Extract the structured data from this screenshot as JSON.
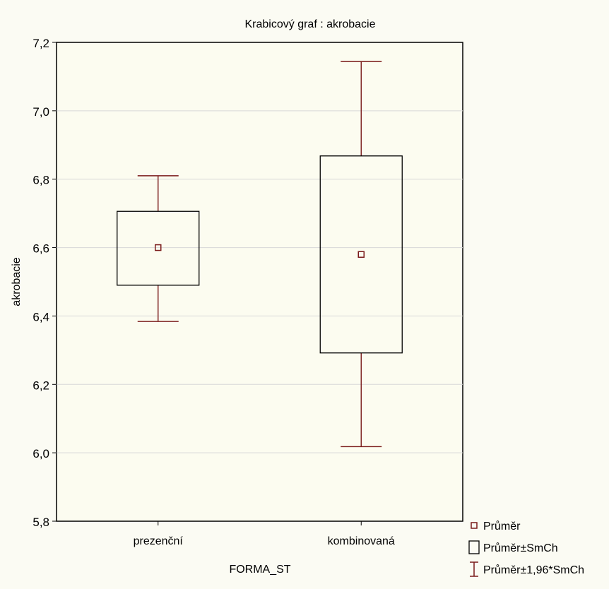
{
  "chart_data": {
    "type": "box",
    "title": "Krabicový  graf :   akrobacie",
    "xlabel": "FORMA_ST",
    "ylabel": "akrobacie",
    "ylim": [
      5.8,
      7.2
    ],
    "yticks": [
      "5,8",
      "6,0",
      "6,2",
      "6,4",
      "6,6",
      "6,8",
      "7,0",
      "7,2"
    ],
    "categories": [
      "prezenční",
      "kombinovaná"
    ],
    "groups": [
      {
        "category": "prezenční",
        "mean": 6.6,
        "box_low": 6.49,
        "box_high": 6.706,
        "whisker_low": 6.384,
        "whisker_high": 6.81
      },
      {
        "category": "kombinovaná",
        "mean": 6.58,
        "box_low": 6.292,
        "box_high": 6.868,
        "whisker_low": 6.018,
        "whisker_high": 7.144
      }
    ],
    "legend": {
      "placement": "bottom-right",
      "items": [
        "Průměr",
        "Průměr±SmCh",
        "Průměr±1,96*SmCh"
      ]
    },
    "grid": true,
    "colors": {
      "mark": "#7a1a1a",
      "grid": "#d8d8d8",
      "frame": "#000000",
      "background": "#fbfbf3"
    }
  }
}
